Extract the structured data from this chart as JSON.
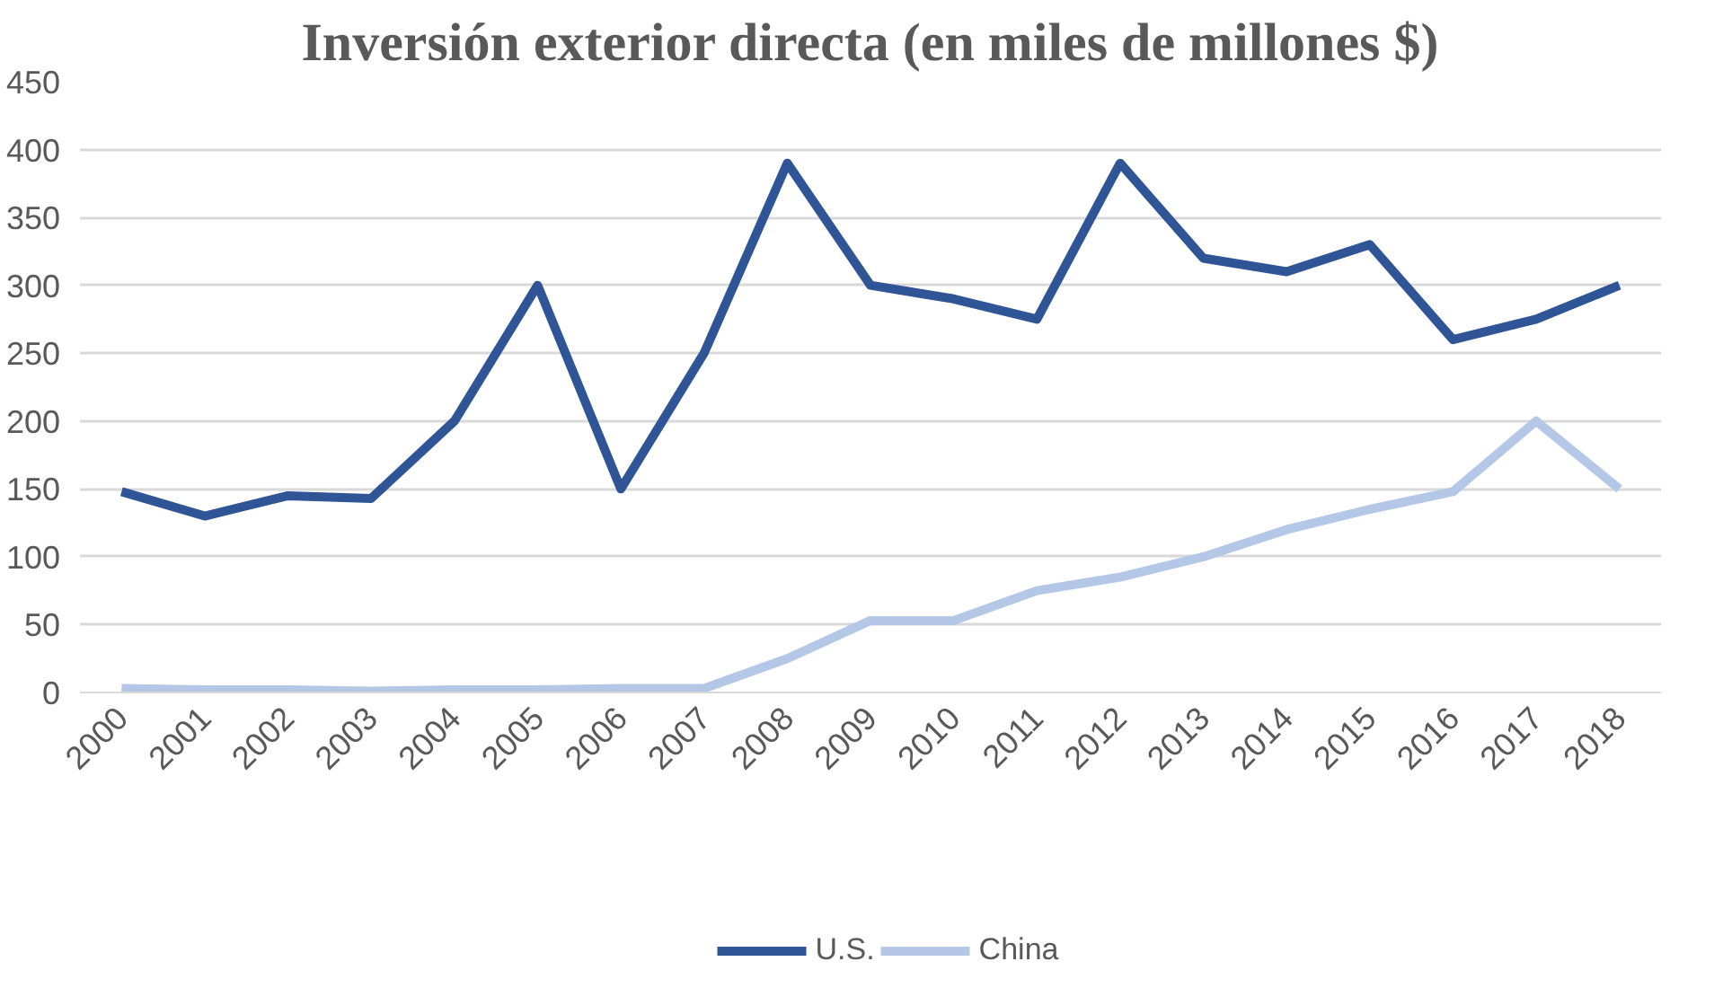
{
  "chart_data": {
    "type": "line",
    "title": "Inversión exterior directa (en miles de millones $)",
    "categories": [
      "2000",
      "2001",
      "2002",
      "2003",
      "2004",
      "2005",
      "2006",
      "2007",
      "2008",
      "2009",
      "2010",
      "2011",
      "2012",
      "2013",
      "2014",
      "2015",
      "2016",
      "2017",
      "2018"
    ],
    "series": [
      {
        "name": "U.S.",
        "color": "#2f5597",
        "values": [
          148,
          130,
          145,
          143,
          200,
          300,
          150,
          250,
          390,
          300,
          290,
          275,
          390,
          320,
          310,
          330,
          260,
          275,
          300
        ]
      },
      {
        "name": "China",
        "color": "#b4c7e7",
        "values": [
          3,
          2,
          2,
          1,
          2,
          2,
          3,
          3,
          25,
          53,
          53,
          75,
          85,
          100,
          120,
          135,
          148,
          200,
          150
        ]
      }
    ],
    "ylim": [
      0,
      450
    ],
    "yticks": [
      0,
      50,
      100,
      150,
      200,
      250,
      300,
      350,
      400,
      450
    ],
    "grid": "y",
    "legend": "bottom",
    "marker": "none",
    "line_style": "solid"
  }
}
